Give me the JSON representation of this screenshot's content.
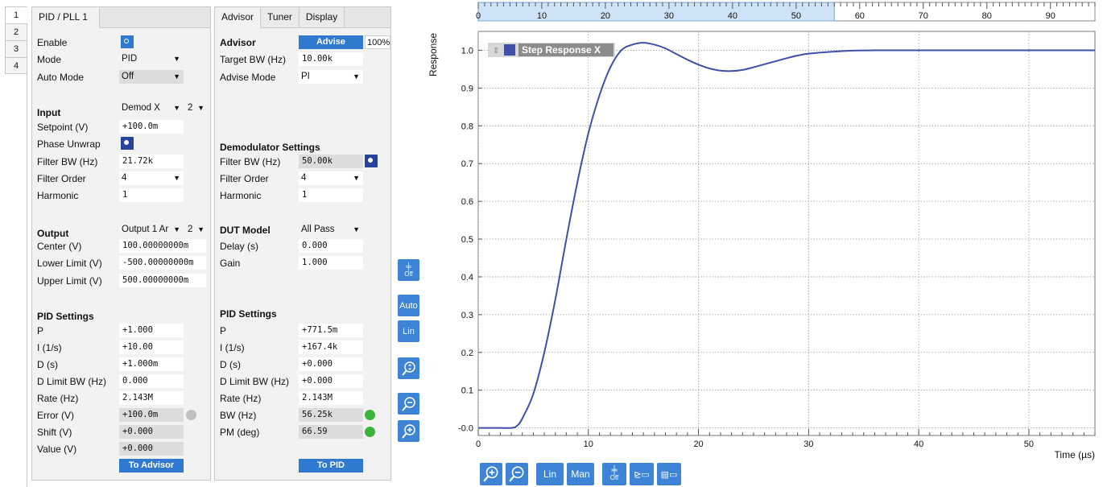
{
  "left_tabs": [
    "1",
    "2",
    "3",
    "4"
  ],
  "pid_panel": {
    "tab": "PID / PLL 1",
    "enable_label": "Enable",
    "mode_label": "Mode",
    "mode_value": "PID",
    "auto_mode_label": "Auto Mode",
    "auto_mode_value": "Off",
    "input_head": "Input",
    "input_value": "Demod X",
    "input_index": "2",
    "setpoint_label": "Setpoint (V)",
    "setpoint_value": "+100.0m",
    "phase_unwrap_label": "Phase Unwrap",
    "filter_bw_label": "Filter BW (Hz)",
    "filter_bw_value": "21.72k",
    "filter_order_label": "Filter Order",
    "filter_order_value": "4",
    "harmonic_label": "Harmonic",
    "harmonic_value": "1",
    "output_head": "Output",
    "output_value": "Output 1 Ar",
    "output_index": "2",
    "center_label": "Center (V)",
    "center_value": "100.00000000m",
    "lower_label": "Lower Limit (V)",
    "lower_value": "-500.00000000m",
    "upper_label": "Upper Limit (V)",
    "upper_value": "500.00000000m",
    "pid_head": "PID Settings",
    "p_label": "P",
    "p_value": "+1.000",
    "i_label": "I (1/s)",
    "i_value": "+10.00",
    "d_label": "D (s)",
    "d_value": "+1.000m",
    "dlim_label": "D Limit BW (Hz)",
    "dlim_value": "0.000",
    "rate_label": "Rate (Hz)",
    "rate_value": "2.143M",
    "error_label": "Error (V)",
    "error_value": "+100.0m",
    "shift_label": "Shift (V)",
    "shift_value": "+0.000",
    "value_label": "Value (V)",
    "value_value": "+0.000",
    "to_advisor": "To Advisor"
  },
  "advisor_panel": {
    "tabs": [
      "Advisor",
      "Tuner",
      "Display"
    ],
    "advisor_head": "Advisor",
    "advise_button": "Advise",
    "advise_pct": "100%",
    "target_bw_label": "Target BW (Hz)",
    "target_bw_value": "10.00k",
    "advise_mode_label": "Advise Mode",
    "advise_mode_value": "PI",
    "demod_head": "Demodulator Settings",
    "filter_bw_label": "Filter BW (Hz)",
    "filter_bw_value": "50.00k",
    "filter_order_label": "Filter Order",
    "filter_order_value": "4",
    "harmonic_label": "Harmonic",
    "harmonic_value": "1",
    "dut_head": "DUT Model",
    "dut_value": "All Pass",
    "delay_label": "Delay (s)",
    "delay_value": "0.000",
    "gain_label": "Gain",
    "gain_value": "1.000",
    "pid_head": "PID Settings",
    "p_label": "P",
    "p_value": "+771.5m",
    "i_label": "I (1/s)",
    "i_value": "+167.4k",
    "d_label": "D (s)",
    "d_value": "+0.000",
    "dlim_label": "D Limit BW (Hz)",
    "dlim_value": "+0.000",
    "rate_label": "Rate (Hz)",
    "rate_value": "2.143M",
    "bw_label": "BW (Hz)",
    "bw_value": "56.25k",
    "pm_label": "PM (deg)",
    "pm_value": "66.59",
    "to_pid": "To PID"
  },
  "side_tools": {
    "grid_label": "Off",
    "auto_label": "Auto",
    "lin_label": "Lin"
  },
  "bottom_tools": {
    "lin_label": "Lin",
    "man_label": "Man",
    "grid_label": "Off"
  },
  "colors": {
    "accent": "#3d84d6",
    "trace": "#3f4fa8",
    "led_grey": "#c0c0c0",
    "led_green": "#3cb43c"
  },
  "chart_data": {
    "type": "line",
    "title": "",
    "xlabel": "Time (µs)",
    "ylabel": "Response",
    "legend": "Step Response X",
    "legend_placement": "top-left",
    "grid": true,
    "xlim": [
      0,
      56
    ],
    "ylim": [
      -0.02,
      1.05
    ],
    "x_ticks": [
      0,
      10,
      20,
      30,
      40,
      50
    ],
    "y_ticks": [
      -0.0,
      0.1,
      0.2,
      0.3,
      0.4,
      0.5,
      0.6,
      0.7,
      0.8,
      0.9,
      1.0
    ],
    "y_tick_labels": [
      "-0.0",
      "0.1",
      "0.2",
      "0.3",
      "0.4",
      "0.5",
      "0.6",
      "0.7",
      "0.8",
      "0.9",
      "1.0"
    ],
    "overview_ticks": [
      0,
      10,
      20,
      30,
      40,
      50,
      60,
      70,
      80,
      90
    ],
    "overview_range": [
      0,
      97
    ],
    "overview_selection": [
      0,
      56
    ],
    "series": [
      {
        "x": [
          0,
          2,
          3,
          3.5,
          4,
          5,
          6,
          7,
          8,
          9,
          10,
          11,
          12,
          13,
          14,
          15,
          16,
          17,
          18,
          19,
          20,
          21,
          22,
          23,
          24,
          25,
          26,
          27,
          28,
          29,
          30,
          32,
          34,
          36,
          40,
          45,
          50,
          56
        ],
        "values": [
          0,
          0,
          0,
          0.005,
          0.025,
          0.09,
          0.2,
          0.34,
          0.5,
          0.65,
          0.78,
          0.88,
          0.955,
          1.0,
          1.015,
          1.02,
          1.015,
          1.005,
          0.99,
          0.975,
          0.962,
          0.952,
          0.946,
          0.945,
          0.948,
          0.955,
          0.963,
          0.971,
          0.979,
          0.986,
          0.991,
          0.996,
          0.999,
          1.0,
          1.0,
          1.0,
          1.0,
          1.0
        ]
      }
    ]
  }
}
